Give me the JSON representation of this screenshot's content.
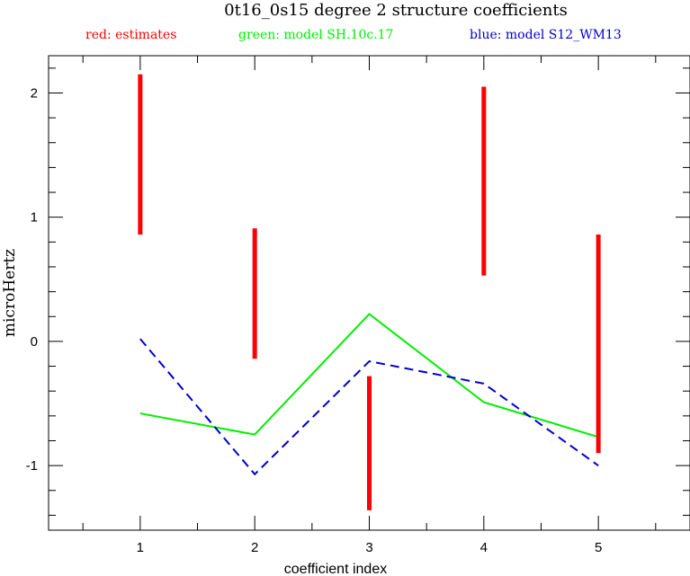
{
  "chart_data": {
    "type": "line",
    "title": "0t16_0s15 degree 2 structure coefficients",
    "legend": [
      {
        "text": "red: estimates",
        "color": "#ff0000"
      },
      {
        "text": "green: model SH.10c.17",
        "color": "#00ee00"
      },
      {
        "text": "blue: model S12_WM13",
        "color": "#0000cc"
      }
    ],
    "xlabel": "coefficient index",
    "ylabel": "microHertz",
    "xlim": [
      0.2,
      5.8
    ],
    "ylim": [
      -1.52,
      2.3
    ],
    "x_ticks": [
      1,
      2,
      3,
      4,
      5
    ],
    "y_ticks": [
      2,
      1,
      0,
      -1
    ],
    "x_tick_labels": [
      "1",
      "2",
      "3",
      "4",
      "5"
    ],
    "y_tick_labels": [
      "2",
      "1",
      "0",
      "-1"
    ],
    "estimates": [
      {
        "x": 1,
        "low": 0.86,
        "high": 2.15
      },
      {
        "x": 2,
        "low": -0.14,
        "high": 0.91
      },
      {
        "x": 3,
        "low": -1.36,
        "high": -0.28
      },
      {
        "x": 4,
        "low": 0.53,
        "high": 2.05
      },
      {
        "x": 5,
        "low": -0.9,
        "high": 0.86
      }
    ],
    "series": [
      {
        "name": "model SH.10c.17",
        "color": "#00ee00",
        "style": "solid",
        "x": [
          1,
          2,
          3,
          4,
          5
        ],
        "values": [
          -0.58,
          -0.75,
          0.22,
          -0.49,
          -0.77
        ]
      },
      {
        "name": "model S12_WM13",
        "color": "#0000cc",
        "style": "dashed",
        "x": [
          1,
          2,
          3,
          4,
          5
        ],
        "values": [
          0.02,
          -1.07,
          -0.16,
          -0.34,
          -1.0
        ]
      }
    ]
  }
}
